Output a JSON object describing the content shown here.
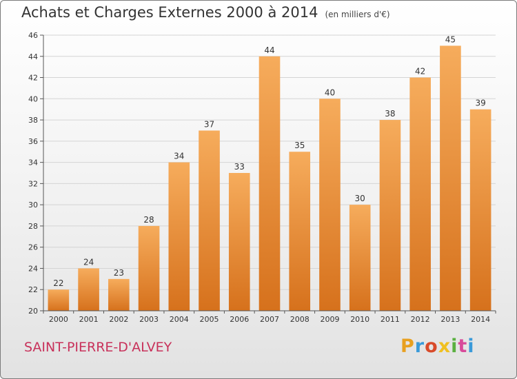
{
  "header": {
    "title": "Achats et Charges Externes 2000 à 2014",
    "unit": "(en milliers d'€)"
  },
  "footer": {
    "commune": "SAINT-PIERRE-D'ALVEY",
    "logo_text": "Proxiti"
  },
  "colors": {
    "bar": "#f0a050",
    "bar_dark": "#d8741f",
    "commune": "#c8315a"
  },
  "chart_data": {
    "type": "bar",
    "title": "Achats et Charges Externes 2000 à 2014",
    "subtitle": "(en milliers d'€)",
    "categories": [
      "2000",
      "2001",
      "2002",
      "2003",
      "2004",
      "2005",
      "2006",
      "2007",
      "2008",
      "2009",
      "2010",
      "2011",
      "2012",
      "2013",
      "2014"
    ],
    "values": [
      22,
      24,
      23,
      28,
      34,
      37,
      33,
      44,
      35,
      40,
      30,
      38,
      42,
      45,
      39
    ],
    "ylim": [
      20,
      46
    ],
    "yticks": [
      20,
      22,
      24,
      26,
      28,
      30,
      32,
      34,
      36,
      38,
      40,
      42,
      44,
      46
    ],
    "xlabel": "",
    "ylabel": "",
    "grid": true,
    "data_labels": true
  }
}
